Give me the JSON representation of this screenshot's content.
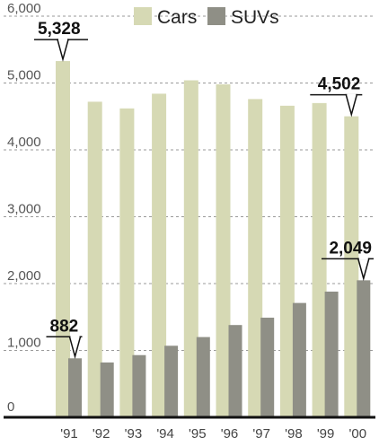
{
  "chart_data": {
    "type": "bar",
    "categories": [
      "'91",
      "'92",
      "'93",
      "'94",
      "'95",
      "'96",
      "'97",
      "'98",
      "'99",
      "'00"
    ],
    "series": [
      {
        "name": "Cars",
        "values": [
          5328,
          4720,
          4620,
          4840,
          5040,
          4980,
          4760,
          4660,
          4700,
          4502
        ],
        "color": "#d6d9b4"
      },
      {
        "name": "SUVs",
        "values": [
          882,
          820,
          930,
          1070,
          1200,
          1380,
          1490,
          1710,
          1880,
          2049
        ],
        "color": "#8f8f86"
      }
    ],
    "ylim": [
      0,
      6000
    ],
    "yticks": [
      0,
      1000,
      2000,
      3000,
      4000,
      5000,
      6000
    ],
    "ytick_labels": [
      "0",
      "1,000",
      "2,000",
      "3,000",
      "4,000",
      "5,000",
      "6,000"
    ],
    "grid": "dashed horizontal",
    "legend": "top",
    "annotations": [
      {
        "series": "Cars",
        "category": "'91",
        "text": "5,328"
      },
      {
        "series": "SUVs",
        "category": "'91",
        "text": "882"
      },
      {
        "series": "Cars",
        "category": "'00",
        "text": "4,502"
      },
      {
        "series": "SUVs",
        "category": "'00",
        "text": "2,049"
      }
    ],
    "title": "",
    "xlabel": "",
    "ylabel": ""
  }
}
